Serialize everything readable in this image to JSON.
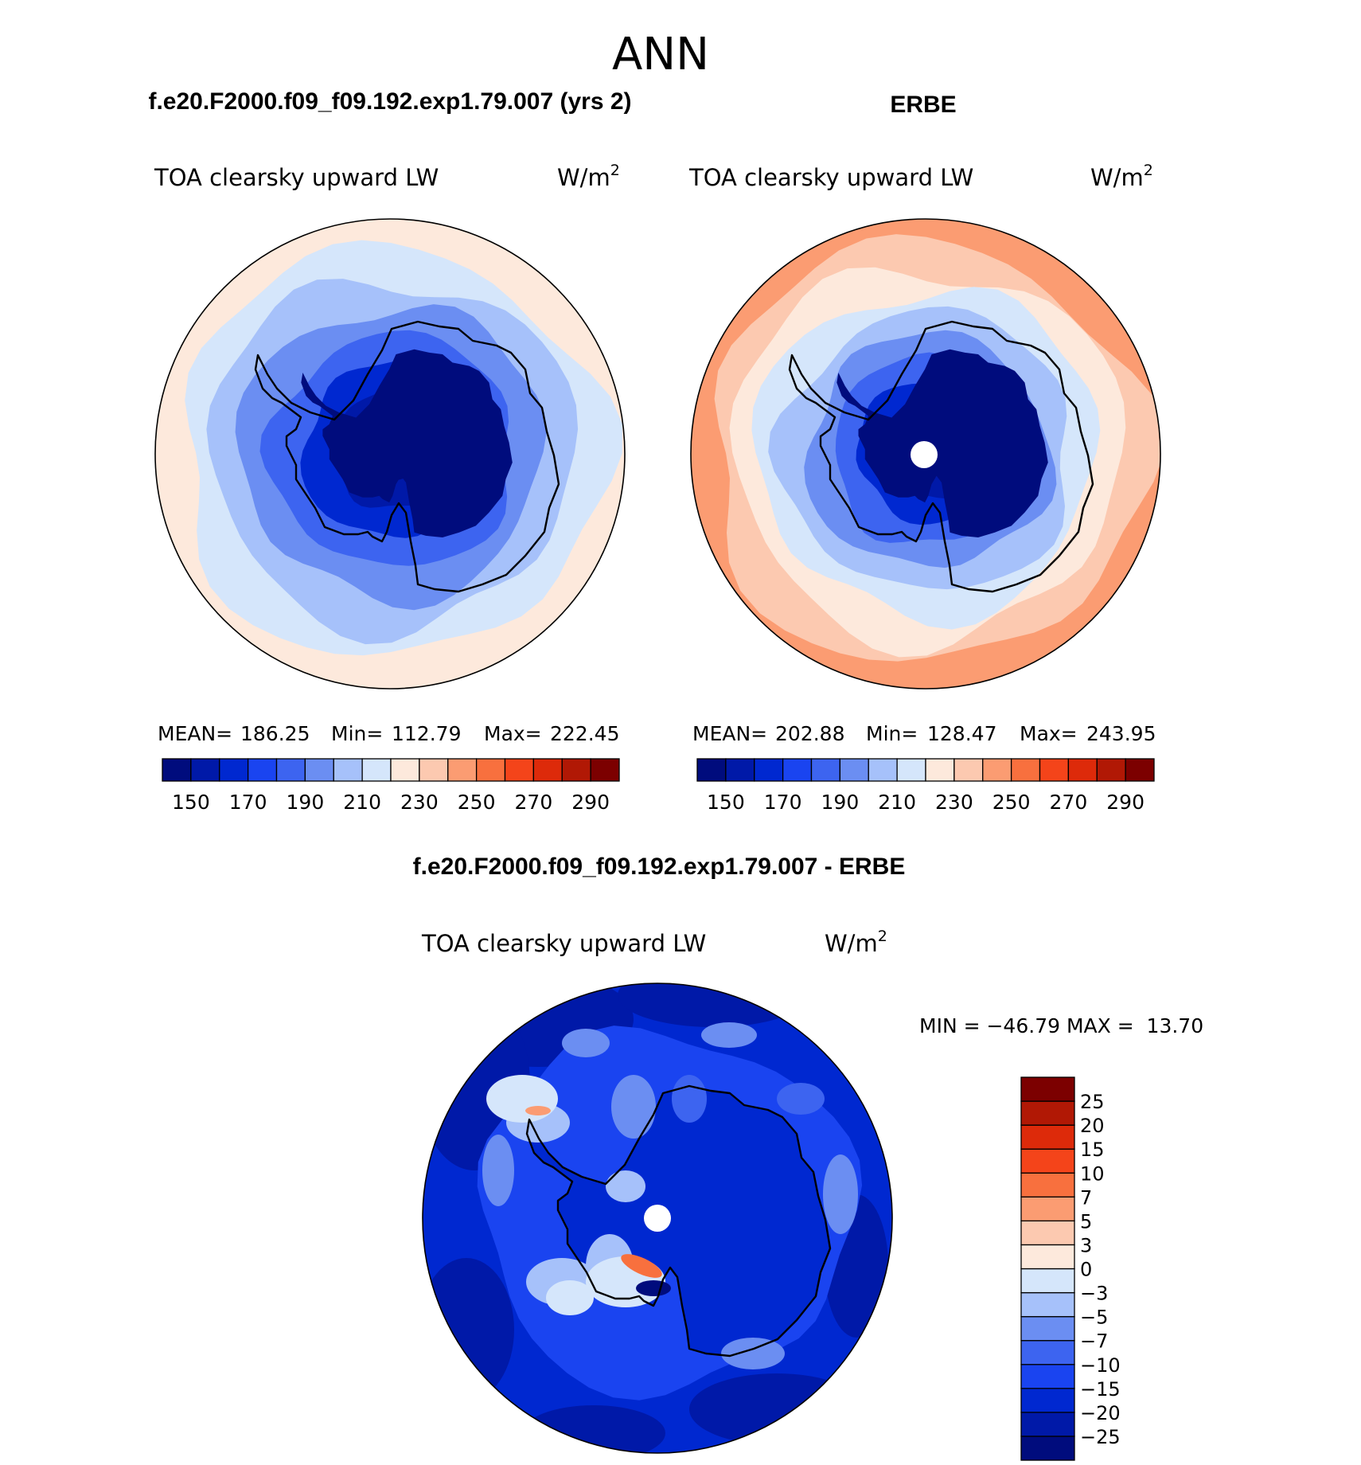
{
  "chart_data": {
    "type": "heatmap",
    "title": "ANN",
    "projection": "south polar stereographic",
    "panels": [
      {
        "case_title": "f.e20.F2000.f09_f09.192.exp1.79.007 (yrs 2)",
        "variable": "TOA clearsky upward LW",
        "units_base": "W/m",
        "units_exp": "2",
        "stats": {
          "mean_label": "MEAN=",
          "mean": "186.25",
          "min_label": "Min=",
          "min": "112.79",
          "max_label": "Max=",
          "max": "222.45"
        },
        "field_levels_by_ring": [
          1,
          2,
          3,
          5,
          6,
          7,
          8,
          9
        ],
        "has_pole_hole": false
      },
      {
        "case_title": "ERBE",
        "variable": "TOA clearsky upward LW",
        "units_base": "W/m",
        "units_exp": "2",
        "stats": {
          "mean_label": "MEAN=",
          "mean": "202.88",
          "min_label": "Min=",
          "min": "128.47",
          "max_label": "Max=",
          "max": "243.95"
        },
        "field_levels_by_ring": [
          1,
          2,
          3,
          5,
          6,
          7,
          8,
          9,
          10,
          11
        ],
        "has_pole_hole": true
      }
    ],
    "abs_colorbar": {
      "colors": [
        "#000c7d",
        "#0019a8",
        "#0028d0",
        "#1a44f0",
        "#3d64f0",
        "#6b8ef2",
        "#a6c1fa",
        "#d5e6fb",
        "#fde9dc",
        "#fcc9b0",
        "#fb9c72",
        "#f8703e",
        "#f4441a",
        "#dd2a0a",
        "#b11805",
        "#7c0000"
      ],
      "tick_labels": [
        "150",
        "170",
        "190",
        "210",
        "230",
        "250",
        "270",
        "290"
      ]
    },
    "difference": {
      "title": "f.e20.F2000.f09_f09.192.exp1.79.007 - ERBE",
      "variable": "TOA clearsky upward LW",
      "units_base": "W/m",
      "units_exp": "2",
      "minmax_text": "MIN = −46.79 MAX =  13.70",
      "colors": [
        "#000c7d",
        "#0019a8",
        "#0028d0",
        "#1a44f0",
        "#3d64f0",
        "#6b8ef2",
        "#a6c1fa",
        "#d5e6fb",
        "#fde9dc",
        "#fcc9b0",
        "#fb9c72",
        "#f8703e",
        "#f4441a",
        "#dd2a0a",
        "#b11805",
        "#7c0000"
      ],
      "levels": [
        "−25",
        "−20",
        "−15",
        "−10",
        "−7",
        "−5",
        "−3",
        "0",
        "3",
        "5",
        "7",
        "10",
        "15",
        "20",
        "25"
      ]
    }
  }
}
